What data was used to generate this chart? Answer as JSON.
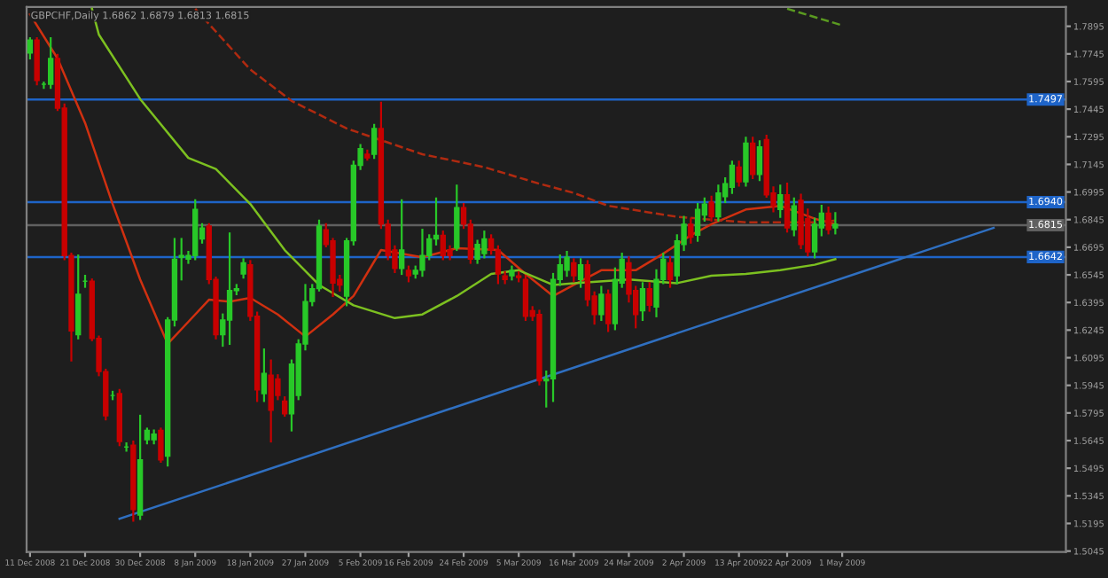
{
  "chart_data": {
    "type": "candlestick",
    "title": "GBPCHF,Daily 1.6862 1.6879 1.6813 1.6815",
    "categories": [
      "11 Dec 2008",
      null,
      null,
      null,
      null,
      null,
      null,
      null,
      "21 Dec 2008",
      null,
      null,
      null,
      null,
      null,
      null,
      null,
      "30 Dec 2008",
      null,
      null,
      null,
      null,
      null,
      null,
      null,
      "8 Jan 2009",
      null,
      null,
      null,
      null,
      null,
      null,
      null,
      "18 Jan 2009",
      null,
      null,
      null,
      null,
      null,
      null,
      null,
      "27 Jan 2009",
      null,
      null,
      null,
      null,
      null,
      null,
      null,
      "5 Feb 2009",
      null,
      null,
      null,
      null,
      null,
      null,
      "16 Feb 2009",
      null,
      null,
      null,
      null,
      null,
      null,
      null,
      "24 Feb 2009",
      null,
      null,
      null,
      null,
      null,
      null,
      null,
      "5 Mar 2009",
      null,
      null,
      null,
      null,
      null,
      null,
      null,
      "16 Mar 2009",
      null,
      null,
      null,
      null,
      null,
      null,
      null,
      "24 Mar 2009",
      null,
      null,
      null,
      null,
      null,
      null,
      null,
      "2 Apr 2009",
      null,
      null,
      null,
      null,
      null,
      null,
      null,
      "13 Apr 2009",
      null,
      null,
      null,
      null,
      null,
      null,
      "22 Apr 2009",
      null,
      null,
      null,
      null,
      null,
      null,
      null,
      "1 May 2009",
      null,
      null,
      null,
      null,
      null,
      null,
      null,
      null,
      null,
      null,
      null,
      null,
      null,
      null,
      null,
      null,
      null,
      null,
      null,
      null,
      null,
      null,
      null,
      null,
      null,
      null,
      null,
      null,
      null,
      null,
      null,
      null
    ],
    "ohlc": [
      [
        1.775,
        1.783,
        1.772,
        1.782
      ],
      [
        1.782,
        1.783,
        1.758,
        1.76
      ],
      [
        1.758,
        1.759,
        1.756,
        1.758
      ],
      [
        1.758,
        1.783,
        1.756,
        1.772
      ],
      [
        1.772,
        1.774,
        1.744,
        1.745
      ],
      [
        1.745,
        1.747,
        1.663,
        1.665
      ],
      [
        1.665,
        1.666,
        1.608,
        1.624
      ],
      [
        1.622,
        1.665,
        1.62,
        1.644
      ],
      [
        1.651,
        1.654,
        1.648,
        1.651
      ],
      [
        1.651,
        1.652,
        1.619,
        1.62
      ],
      [
        1.62,
        1.621,
        1.6,
        1.602
      ],
      [
        1.602,
        1.603,
        1.576,
        1.578
      ],
      [
        1.589,
        1.591,
        1.587,
        1.589
      ],
      [
        1.59,
        1.592,
        1.562,
        1.564
      ],
      [
        1.561,
        1.563,
        1.559,
        1.561
      ],
      [
        1.562,
        1.564,
        1.521,
        1.527
      ],
      [
        1.524,
        1.578,
        1.522,
        1.554
      ],
      [
        1.565,
        1.571,
        1.563,
        1.57
      ],
      [
        1.565,
        1.57,
        1.563,
        1.568
      ],
      [
        1.57,
        1.571,
        1.553,
        1.554
      ],
      [
        1.556,
        1.631,
        1.551,
        1.63
      ],
      [
        1.63,
        1.674,
        1.627,
        1.663
      ],
      [
        1.664,
        1.674,
        1.652,
        1.665
      ],
      [
        1.663,
        1.667,
        1.661,
        1.665
      ],
      [
        1.665,
        1.695,
        1.663,
        1.69
      ],
      [
        1.674,
        1.682,
        1.672,
        1.68
      ],
      [
        1.681,
        1.682,
        1.65,
        1.652
      ],
      [
        1.652,
        1.653,
        1.62,
        1.622
      ],
      [
        1.622,
        1.633,
        1.616,
        1.63
      ],
      [
        1.63,
        1.677,
        1.617,
        1.646
      ],
      [
        1.646,
        1.649,
        1.644,
        1.647
      ],
      [
        1.655,
        1.663,
        1.653,
        1.661
      ],
      [
        1.66,
        1.662,
        1.63,
        1.632
      ],
      [
        1.632,
        1.634,
        1.586,
        1.592
      ],
      [
        1.59,
        1.614,
        1.586,
        1.601
      ],
      [
        1.6,
        1.608,
        1.564,
        1.581
      ],
      [
        1.598,
        1.6,
        1.587,
        1.589
      ],
      [
        1.586,
        1.588,
        1.578,
        1.579
      ],
      [
        1.579,
        1.608,
        1.57,
        1.606
      ],
      [
        1.589,
        1.619,
        1.587,
        1.617
      ],
      [
        1.617,
        1.649,
        1.614,
        1.64
      ],
      [
        1.64,
        1.649,
        1.638,
        1.647
      ],
      [
        1.647,
        1.684,
        1.646,
        1.681
      ],
      [
        1.679,
        1.682,
        1.67,
        1.671
      ],
      [
        1.673,
        1.674,
        1.643,
        1.65
      ],
      [
        1.652,
        1.654,
        1.646,
        1.649
      ],
      [
        1.643,
        1.674,
        1.638,
        1.673
      ],
      [
        1.673,
        1.716,
        1.671,
        1.714
      ],
      [
        1.714,
        1.725,
        1.712,
        1.723
      ],
      [
        1.72,
        1.722,
        1.717,
        1.718
      ],
      [
        1.72,
        1.736,
        1.718,
        1.734
      ],
      [
        1.734,
        1.748,
        1.68,
        1.682
      ],
      [
        1.682,
        1.684,
        1.663,
        1.665
      ],
      [
        1.668,
        1.67,
        1.656,
        1.658
      ],
      [
        1.658,
        1.695,
        1.655,
        1.668
      ],
      [
        1.657,
        1.659,
        1.651,
        1.654
      ],
      [
        1.655,
        1.659,
        1.653,
        1.657
      ],
      [
        1.657,
        1.679,
        1.654,
        1.665
      ],
      [
        1.665,
        1.676,
        1.663,
        1.674
      ],
      [
        1.674,
        1.696,
        1.671,
        1.676
      ],
      [
        1.676,
        1.678,
        1.663,
        1.665
      ],
      [
        1.668,
        1.67,
        1.663,
        1.665
      ],
      [
        1.669,
        1.703,
        1.668,
        1.691
      ],
      [
        1.691,
        1.693,
        1.68,
        1.682
      ],
      [
        1.682,
        1.684,
        1.661,
        1.663
      ],
      [
        1.663,
        1.673,
        1.661,
        1.671
      ],
      [
        1.666,
        1.678,
        1.664,
        1.674
      ],
      [
        1.674,
        1.676,
        1.666,
        1.668
      ],
      [
        1.668,
        1.67,
        1.65,
        1.655
      ],
      [
        1.654,
        1.656,
        1.65,
        1.652
      ],
      [
        1.654,
        1.659,
        1.652,
        1.657
      ],
      [
        1.654,
        1.656,
        1.651,
        1.653
      ],
      [
        1.652,
        1.654,
        1.63,
        1.632
      ],
      [
        1.635,
        1.637,
        1.63,
        1.632
      ],
      [
        1.633,
        1.635,
        1.595,
        1.597
      ],
      [
        1.597,
        1.602,
        1.583,
        1.598
      ],
      [
        1.598,
        1.655,
        1.586,
        1.652
      ],
      [
        1.652,
        1.665,
        1.649,
        1.66
      ],
      [
        1.657,
        1.667,
        1.654,
        1.664
      ],
      [
        1.661,
        1.663,
        1.651,
        1.654
      ],
      [
        1.652,
        1.663,
        1.648,
        1.66
      ],
      [
        1.66,
        1.662,
        1.638,
        1.641
      ],
      [
        1.643,
        1.645,
        1.628,
        1.633
      ],
      [
        1.633,
        1.648,
        1.63,
        1.644
      ],
      [
        1.644,
        1.646,
        1.624,
        1.628
      ],
      [
        1.628,
        1.658,
        1.625,
        1.652
      ],
      [
        1.65,
        1.666,
        1.648,
        1.663
      ],
      [
        1.661,
        1.664,
        1.64,
        1.644
      ],
      [
        1.646,
        1.648,
        1.626,
        1.633
      ],
      [
        1.635,
        1.65,
        1.63,
        1.647
      ],
      [
        1.647,
        1.65,
        1.635,
        1.638
      ],
      [
        1.637,
        1.657,
        1.632,
        1.652
      ],
      [
        1.652,
        1.666,
        1.65,
        1.663
      ],
      [
        1.661,
        1.664,
        1.648,
        1.652
      ],
      [
        1.654,
        1.676,
        1.65,
        1.673
      ],
      [
        1.671,
        1.686,
        1.668,
        1.682
      ],
      [
        1.682,
        1.685,
        1.672,
        1.675
      ],
      [
        1.676,
        1.693,
        1.673,
        1.69
      ],
      [
        1.687,
        1.696,
        1.684,
        1.693
      ],
      [
        1.694,
        1.697,
        1.684,
        1.686
      ],
      [
        1.686,
        1.703,
        1.684,
        1.699
      ],
      [
        1.697,
        1.707,
        1.694,
        1.704
      ],
      [
        1.702,
        1.716,
        1.699,
        1.714
      ],
      [
        1.713,
        1.716,
        1.703,
        1.705
      ],
      [
        1.705,
        1.729,
        1.703,
        1.726
      ],
      [
        1.726,
        1.729,
        1.707,
        1.709
      ],
      [
        1.709,
        1.727,
        1.706,
        1.724
      ],
      [
        1.728,
        1.73,
        1.697,
        1.698
      ],
      [
        1.699,
        1.702,
        1.689,
        1.692
      ],
      [
        1.69,
        1.703,
        1.686,
        1.698
      ],
      [
        1.698,
        1.704,
        1.678,
        1.68
      ],
      [
        1.679,
        1.696,
        1.676,
        1.692
      ],
      [
        1.695,
        1.698,
        1.669,
        1.671
      ],
      [
        1.685,
        1.69,
        1.665,
        1.667
      ],
      [
        1.667,
        1.685,
        1.664,
        1.682
      ],
      [
        1.68,
        1.692,
        1.676,
        1.688
      ],
      [
        1.688,
        1.691,
        1.677,
        1.679
      ],
      [
        1.68,
        1.688,
        1.677,
        1.682
      ],
      null,
      null,
      null,
      null,
      null,
      null,
      null,
      null,
      null,
      null,
      null,
      null,
      null,
      null,
      null,
      null,
      null,
      null,
      null,
      null,
      null,
      null,
      null,
      null,
      null,
      null,
      null,
      null,
      null,
      null,
      null,
      null,
      null
    ],
    "series": [
      {
        "type": "line",
        "color": "#d03010",
        "line_style": "solid",
        "values": [
          1.796,
          null,
          null,
          null,
          1.772,
          null,
          null,
          null,
          1.737,
          null,
          null,
          null,
          1.693,
          null,
          null,
          null,
          1.652,
          null,
          null,
          null,
          1.617,
          null,
          null,
          1.629,
          null,
          null,
          1.641,
          null,
          null,
          1.64,
          null,
          null,
          1.642,
          null,
          null,
          null,
          1.633,
          null,
          null,
          null,
          1.621,
          null,
          null,
          null,
          1.633,
          null,
          null,
          1.643,
          null,
          null,
          null,
          1.668,
          null,
          null,
          null,
          null,
          null,
          1.664,
          null,
          null,
          null,
          null,
          1.669,
          null,
          null,
          null,
          null,
          null,
          1.668,
          null,
          null,
          null,
          1.655,
          null,
          null,
          null,
          1.643,
          null,
          null,
          1.649,
          null,
          null,
          null,
          1.657,
          null,
          null,
          null,
          null,
          1.657,
          null,
          null,
          null,
          1.666,
          null,
          null,
          null,
          1.676,
          null,
          null,
          1.682,
          null,
          null,
          null,
          null,
          1.69,
          null,
          null,
          null,
          null,
          1.692,
          null,
          null,
          null,
          null,
          1.685,
          null,
          null,
          1.682,
          null,
          null,
          null,
          null,
          null,
          null,
          null,
          null,
          null,
          null,
          null,
          null,
          null,
          null,
          null,
          null,
          null,
          null,
          null,
          null,
          null,
          null,
          null,
          null,
          null,
          null,
          null,
          null,
          null,
          null,
          null,
          null,
          null
        ]
      },
      {
        "type": "line",
        "color": "#7cc020",
        "line_style": "solid",
        "values": [
          null,
          null,
          null,
          null,
          null,
          null,
          null,
          null,
          null,
          1.799,
          1.785,
          null,
          null,
          null,
          null,
          null,
          1.75,
          null,
          null,
          null,
          null,
          null,
          null,
          1.718,
          null,
          null,
          null,
          1.712,
          null,
          null,
          null,
          null,
          1.693,
          null,
          null,
          null,
          null,
          1.668,
          null,
          null,
          null,
          null,
          1.649,
          null,
          null,
          null,
          null,
          1.638,
          null,
          null,
          null,
          null,
          null,
          1.631,
          null,
          null,
          null,
          1.633,
          null,
          null,
          null,
          null,
          1.643,
          null,
          null,
          null,
          null,
          1.655,
          null,
          null,
          null,
          1.657,
          null,
          null,
          null,
          null,
          1.649,
          null,
          null,
          1.65,
          null,
          null,
          null,
          null,
          null,
          null,
          null,
          1.652,
          null,
          null,
          null,
          null,
          null,
          null,
          1.65,
          null,
          null,
          null,
          null,
          1.654,
          null,
          null,
          null,
          null,
          1.655,
          null,
          null,
          null,
          null,
          1.657,
          null,
          null,
          null,
          null,
          1.66,
          null,
          null,
          1.663,
          null,
          null,
          null,
          null,
          null,
          null,
          null,
          null,
          null,
          null,
          null,
          null,
          null,
          null,
          null,
          null,
          null,
          null,
          null,
          null,
          null,
          null,
          null,
          null,
          null,
          null,
          null,
          null,
          null,
          null,
          null,
          null,
          null
        ]
      },
      {
        "type": "line",
        "color": "#b02a10",
        "line_style": "dashed",
        "values": [
          null,
          null,
          null,
          null,
          null,
          null,
          null,
          null,
          null,
          null,
          null,
          null,
          null,
          null,
          null,
          null,
          null,
          null,
          null,
          null,
          null,
          null,
          null,
          null,
          1.799,
          null,
          null,
          null,
          null,
          null,
          null,
          null,
          1.766,
          null,
          null,
          null,
          null,
          null,
          1.749,
          null,
          null,
          null,
          null,
          null,
          null,
          null,
          1.734,
          null,
          null,
          null,
          null,
          null,
          null,
          null,
          null,
          null,
          null,
          1.72,
          null,
          null,
          null,
          null,
          null,
          null,
          null,
          null,
          1.713,
          null,
          null,
          null,
          null,
          null,
          null,
          null,
          1.704,
          null,
          null,
          null,
          null,
          1.699,
          null,
          null,
          null,
          null,
          1.692,
          null,
          null,
          null,
          null,
          null,
          null,
          null,
          null,
          null,
          1.686,
          null,
          null,
          null,
          null,
          null,
          null,
          null,
          null,
          null,
          1.683,
          null,
          null,
          null,
          null,
          null,
          null,
          null,
          null,
          null,
          1.683,
          null,
          null,
          1.684,
          null,
          null,
          null,
          null,
          null,
          null,
          null,
          null,
          null,
          null,
          null,
          null,
          null,
          null,
          null,
          null,
          null,
          null,
          null,
          null,
          null,
          null,
          null,
          null,
          null,
          null,
          null,
          null,
          null,
          null,
          null,
          null,
          null
        ]
      },
      {
        "type": "line",
        "color": "#5a9a20",
        "line_style": "dashed",
        "values": [
          null,
          null,
          null,
          null,
          null,
          null,
          null,
          null,
          null,
          null,
          null,
          null,
          null,
          null,
          null,
          null,
          null,
          null,
          null,
          null,
          null,
          null,
          null,
          null,
          null,
          null,
          null,
          null,
          null,
          null,
          null,
          null,
          null,
          null,
          null,
          null,
          null,
          null,
          null,
          null,
          null,
          null,
          null,
          null,
          null,
          null,
          null,
          null,
          null,
          null,
          null,
          null,
          null,
          null,
          null,
          null,
          null,
          null,
          null,
          null,
          null,
          null,
          null,
          null,
          null,
          null,
          null,
          null,
          null,
          null,
          null,
          null,
          null,
          null,
          null,
          null,
          null,
          null,
          null,
          null,
          null,
          null,
          null,
          null,
          null,
          null,
          null,
          null,
          null,
          null,
          null,
          null,
          null,
          null,
          null,
          null,
          null,
          null,
          null,
          null,
          null,
          null,
          null,
          null,
          null,
          null,
          null,
          null,
          null,
          null,
          1.799,
          null,
          null,
          null,
          null,
          null,
          null,
          null,
          1.79,
          null,
          null,
          null,
          null,
          null,
          null,
          null,
          null,
          null,
          null,
          null,
          null,
          null,
          null,
          null,
          null,
          null,
          null,
          null,
          null,
          null,
          null,
          null,
          null,
          null,
          null,
          null,
          null,
          null,
          null,
          null,
          null
        ]
      },
      {
        "type": "line",
        "color": "#2f6fc0",
        "line_style": "solid",
        "values": [
          null,
          null,
          null,
          null,
          null,
          null,
          null,
          null,
          null,
          null,
          null,
          null,
          null,
          1.522,
          null,
          null,
          null,
          null,
          null,
          null,
          null,
          null,
          null,
          null,
          null,
          null,
          null,
          null,
          null,
          null,
          null,
          null,
          null,
          null,
          null,
          null,
          null,
          null,
          null,
          null,
          null,
          null,
          null,
          null,
          null,
          null,
          null,
          null,
          null,
          null,
          null,
          null,
          null,
          null,
          null,
          null,
          null,
          null,
          null,
          null,
          null,
          null,
          null,
          null,
          null,
          null,
          null,
          null,
          null,
          null,
          null,
          null,
          null,
          null,
          null,
          null,
          null,
          null,
          null,
          null,
          null,
          null,
          null,
          null,
          null,
          null,
          null,
          null,
          null,
          null,
          null,
          null,
          null,
          null,
          null,
          null,
          null,
          null,
          null,
          null,
          null,
          null,
          null,
          null,
          null,
          null,
          null,
          null,
          null,
          null,
          null,
          null,
          null,
          null,
          null,
          null,
          null,
          null,
          null,
          null,
          null,
          null,
          null,
          null,
          null,
          null,
          null,
          null,
          null,
          null,
          null,
          null,
          null,
          null,
          null,
          null,
          null,
          null,
          null,
          null,
          1.68,
          null,
          null,
          null,
          null,
          null,
          null,
          null,
          null,
          null,
          null
        ]
      }
    ],
    "ref_lines": [
      {
        "axis": "y",
        "value": 1.7497,
        "label": "1.7497",
        "color": "#1e64c8"
      },
      {
        "axis": "y",
        "value": 1.694,
        "label": "1.6940",
        "color": "#1e64c8"
      },
      {
        "axis": "y",
        "value": 1.6815,
        "label": "1.6815",
        "color": "#606060"
      },
      {
        "axis": "y",
        "value": 1.6642,
        "label": "1.6642",
        "color": "#1e64c8"
      }
    ],
    "ylim": [
      1.504,
      1.8
    ],
    "yticks": [
      1.5045,
      1.5195,
      1.5345,
      1.5495,
      1.5645,
      1.5795,
      1.5945,
      1.6095,
      1.6245,
      1.6395,
      1.6545,
      1.6695,
      1.6845,
      1.6995,
      1.7145,
      1.7295,
      1.7445,
      1.7595,
      1.7745,
      1.7895
    ],
    "grid": false,
    "legend": false
  }
}
